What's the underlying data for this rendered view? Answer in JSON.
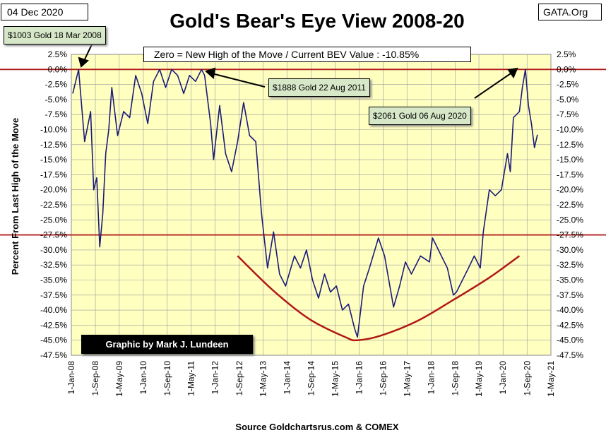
{
  "header": {
    "date": "04 Dec 2020",
    "title": "Gold's Bear's Eye View 2008-20",
    "brand": "GATA.Org",
    "zero_note": "Zero = New High of the Move / Current  BEV Value : -10.85%",
    "credit": "Graphic by Mark J. Lundeen",
    "source": "Source Goldchartsrus.com & COMEX"
  },
  "callouts": [
    {
      "text": "$1003 Gold 18 Mar 2008"
    },
    {
      "text": "$1888 Gold 22 Aug 2011"
    },
    {
      "text": "$2061 Gold 06 Aug 2020"
    }
  ],
  "colors": {
    "plot_bg": "#ffffc0",
    "series": "#1b1b7a",
    "reference_line": "#b01818",
    "grid": "#9a9a9a"
  },
  "chart_data": {
    "type": "line",
    "ylabel": "Percent  From Last High of the Move",
    "xlabel": "",
    "ylim": [
      -47.5,
      2.5
    ],
    "grid": true,
    "y_ticks": [
      "2.5%",
      "0.0%",
      "-2.5%",
      "-5.0%",
      "-7.5%",
      "-10.0%",
      "-12.5%",
      "-15.0%",
      "-17.5%",
      "-20.0%",
      "-22.5%",
      "-25.0%",
      "-27.5%",
      "-30.0%",
      "-32.5%",
      "-35.0%",
      "-37.5%",
      "-40.0%",
      "-42.5%",
      "-45.0%",
      "-47.5%"
    ],
    "x_ticks": [
      "1-Jan-08",
      "1-Sep-08",
      "1-May-09",
      "1-Jan-10",
      "1-Sep-10",
      "1-May-11",
      "1-Jan-12",
      "1-Sep-12",
      "1-May-13",
      "1-Jan-14",
      "1-Sep-14",
      "1-May-15",
      "1-Jan-16",
      "1-Sep-16",
      "1-May-17",
      "1-Jan-18",
      "1-Sep-18",
      "1-May-19",
      "1-Jan-20",
      "1-Sep-20",
      "1-May-21"
    ],
    "reference_lines": [
      0.0,
      -27.5
    ],
    "series": [
      {
        "x": [
          "2008-01",
          "2008-03",
          "2008-05",
          "2008-07",
          "2008-08",
          "2008-09",
          "2008-10",
          "2008-11",
          "2008-12",
          "2009-01",
          "2009-02",
          "2009-04",
          "2009-06",
          "2009-08",
          "2009-10",
          "2009-12",
          "2010-02",
          "2010-04",
          "2010-06",
          "2010-08",
          "2010-10",
          "2010-12",
          "2011-02",
          "2011-04",
          "2011-06",
          "2011-08",
          "2011-09",
          "2011-11",
          "2011-12",
          "2012-02",
          "2012-04",
          "2012-06",
          "2012-08",
          "2012-10",
          "2012-12",
          "2013-02",
          "2013-04",
          "2013-06",
          "2013-08",
          "2013-10",
          "2013-12",
          "2014-03",
          "2014-05",
          "2014-07",
          "2014-09",
          "2014-11",
          "2015-01",
          "2015-03",
          "2015-05",
          "2015-07",
          "2015-09",
          "2015-11",
          "2015-12",
          "2016-02",
          "2016-04",
          "2016-07",
          "2016-09",
          "2016-12",
          "2017-02",
          "2017-04",
          "2017-06",
          "2017-09",
          "2017-12",
          "2018-01",
          "2018-04",
          "2018-06",
          "2018-08",
          "2018-09",
          "2018-11",
          "2019-01",
          "2019-03",
          "2019-05",
          "2019-06",
          "2019-08",
          "2019-10",
          "2019-12",
          "2020-02",
          "2020-03",
          "2020-04",
          "2020-06",
          "2020-07",
          "2020-08",
          "2020-09",
          "2020-10",
          "2020-11",
          "2020-12"
        ],
        "values": [
          -4.0,
          0.0,
          -12.0,
          -7.0,
          -20.0,
          -18.0,
          -29.5,
          -24.0,
          -14.0,
          -10.0,
          -3.0,
          -11.0,
          -7.0,
          -8.0,
          -1.0,
          -4.0,
          -9.0,
          -2.0,
          0.0,
          -3.0,
          0.0,
          -1.0,
          -4.0,
          -1.0,
          -2.0,
          0.0,
          -1.0,
          -9.0,
          -15.0,
          -6.0,
          -14.0,
          -17.0,
          -12.0,
          -5.5,
          -11.0,
          -12.0,
          -24.0,
          -33.0,
          -27.0,
          -34.0,
          -36.0,
          -31.0,
          -33.0,
          -30.0,
          -35.0,
          -38.0,
          -34.0,
          -37.0,
          -36.0,
          -40.0,
          -39.0,
          -43.0,
          -44.5,
          -36.0,
          -33.0,
          -28.0,
          -31.0,
          -39.5,
          -36.0,
          -32.0,
          -34.0,
          -31.0,
          -32.0,
          -28.0,
          -31.0,
          -33.0,
          -37.5,
          -37.0,
          -35.0,
          -33.0,
          -31.0,
          -33.0,
          -27.0,
          -20.0,
          -21.0,
          -20.0,
          -14.0,
          -17.0,
          -8.0,
          -7.0,
          -3.0,
          0.0,
          -6.0,
          -9.0,
          -13.0,
          -10.85
        ]
      }
    ],
    "trend_curve": {
      "x": [
        "2012-08",
        "2013-08",
        "2014-08",
        "2015-08",
        "2015-12",
        "2016-08",
        "2017-08",
        "2018-08",
        "2019-08",
        "2020-06"
      ],
      "values": [
        -31.0,
        -36.8,
        -41.5,
        -44.5,
        -45.0,
        -44.2,
        -41.8,
        -38.3,
        -34.6,
        -31.0
      ]
    }
  }
}
